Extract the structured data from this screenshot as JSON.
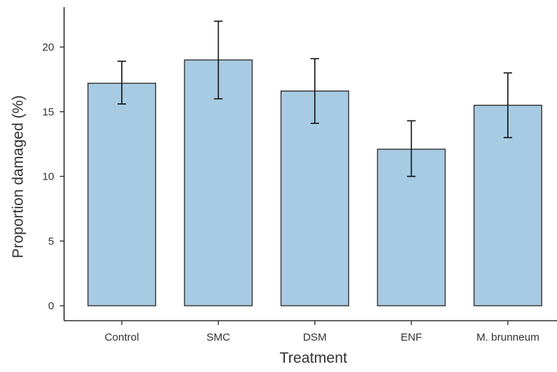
{
  "chart_data": {
    "type": "bar",
    "title": "",
    "xlabel": "Treatment",
    "ylabel": "Proportion damaged (%)",
    "categories": [
      "Control",
      "SMC",
      "DSM",
      "ENF",
      "M. brunneum"
    ],
    "values": [
      17.2,
      19.0,
      16.6,
      12.1,
      15.5
    ],
    "error_low": [
      15.6,
      16.0,
      14.1,
      10.0,
      13.0
    ],
    "error_high": [
      18.9,
      22.0,
      19.1,
      14.3,
      18.0
    ],
    "y_ticks": [
      0,
      5,
      10,
      15,
      20
    ],
    "ylim": [
      0,
      22.5
    ],
    "grid": false,
    "legend": "none",
    "colors": {
      "bar_fill": "#a7cbe2",
      "bar_stroke": "#333333",
      "error_bar": "#111111",
      "axis": "#333333"
    }
  }
}
